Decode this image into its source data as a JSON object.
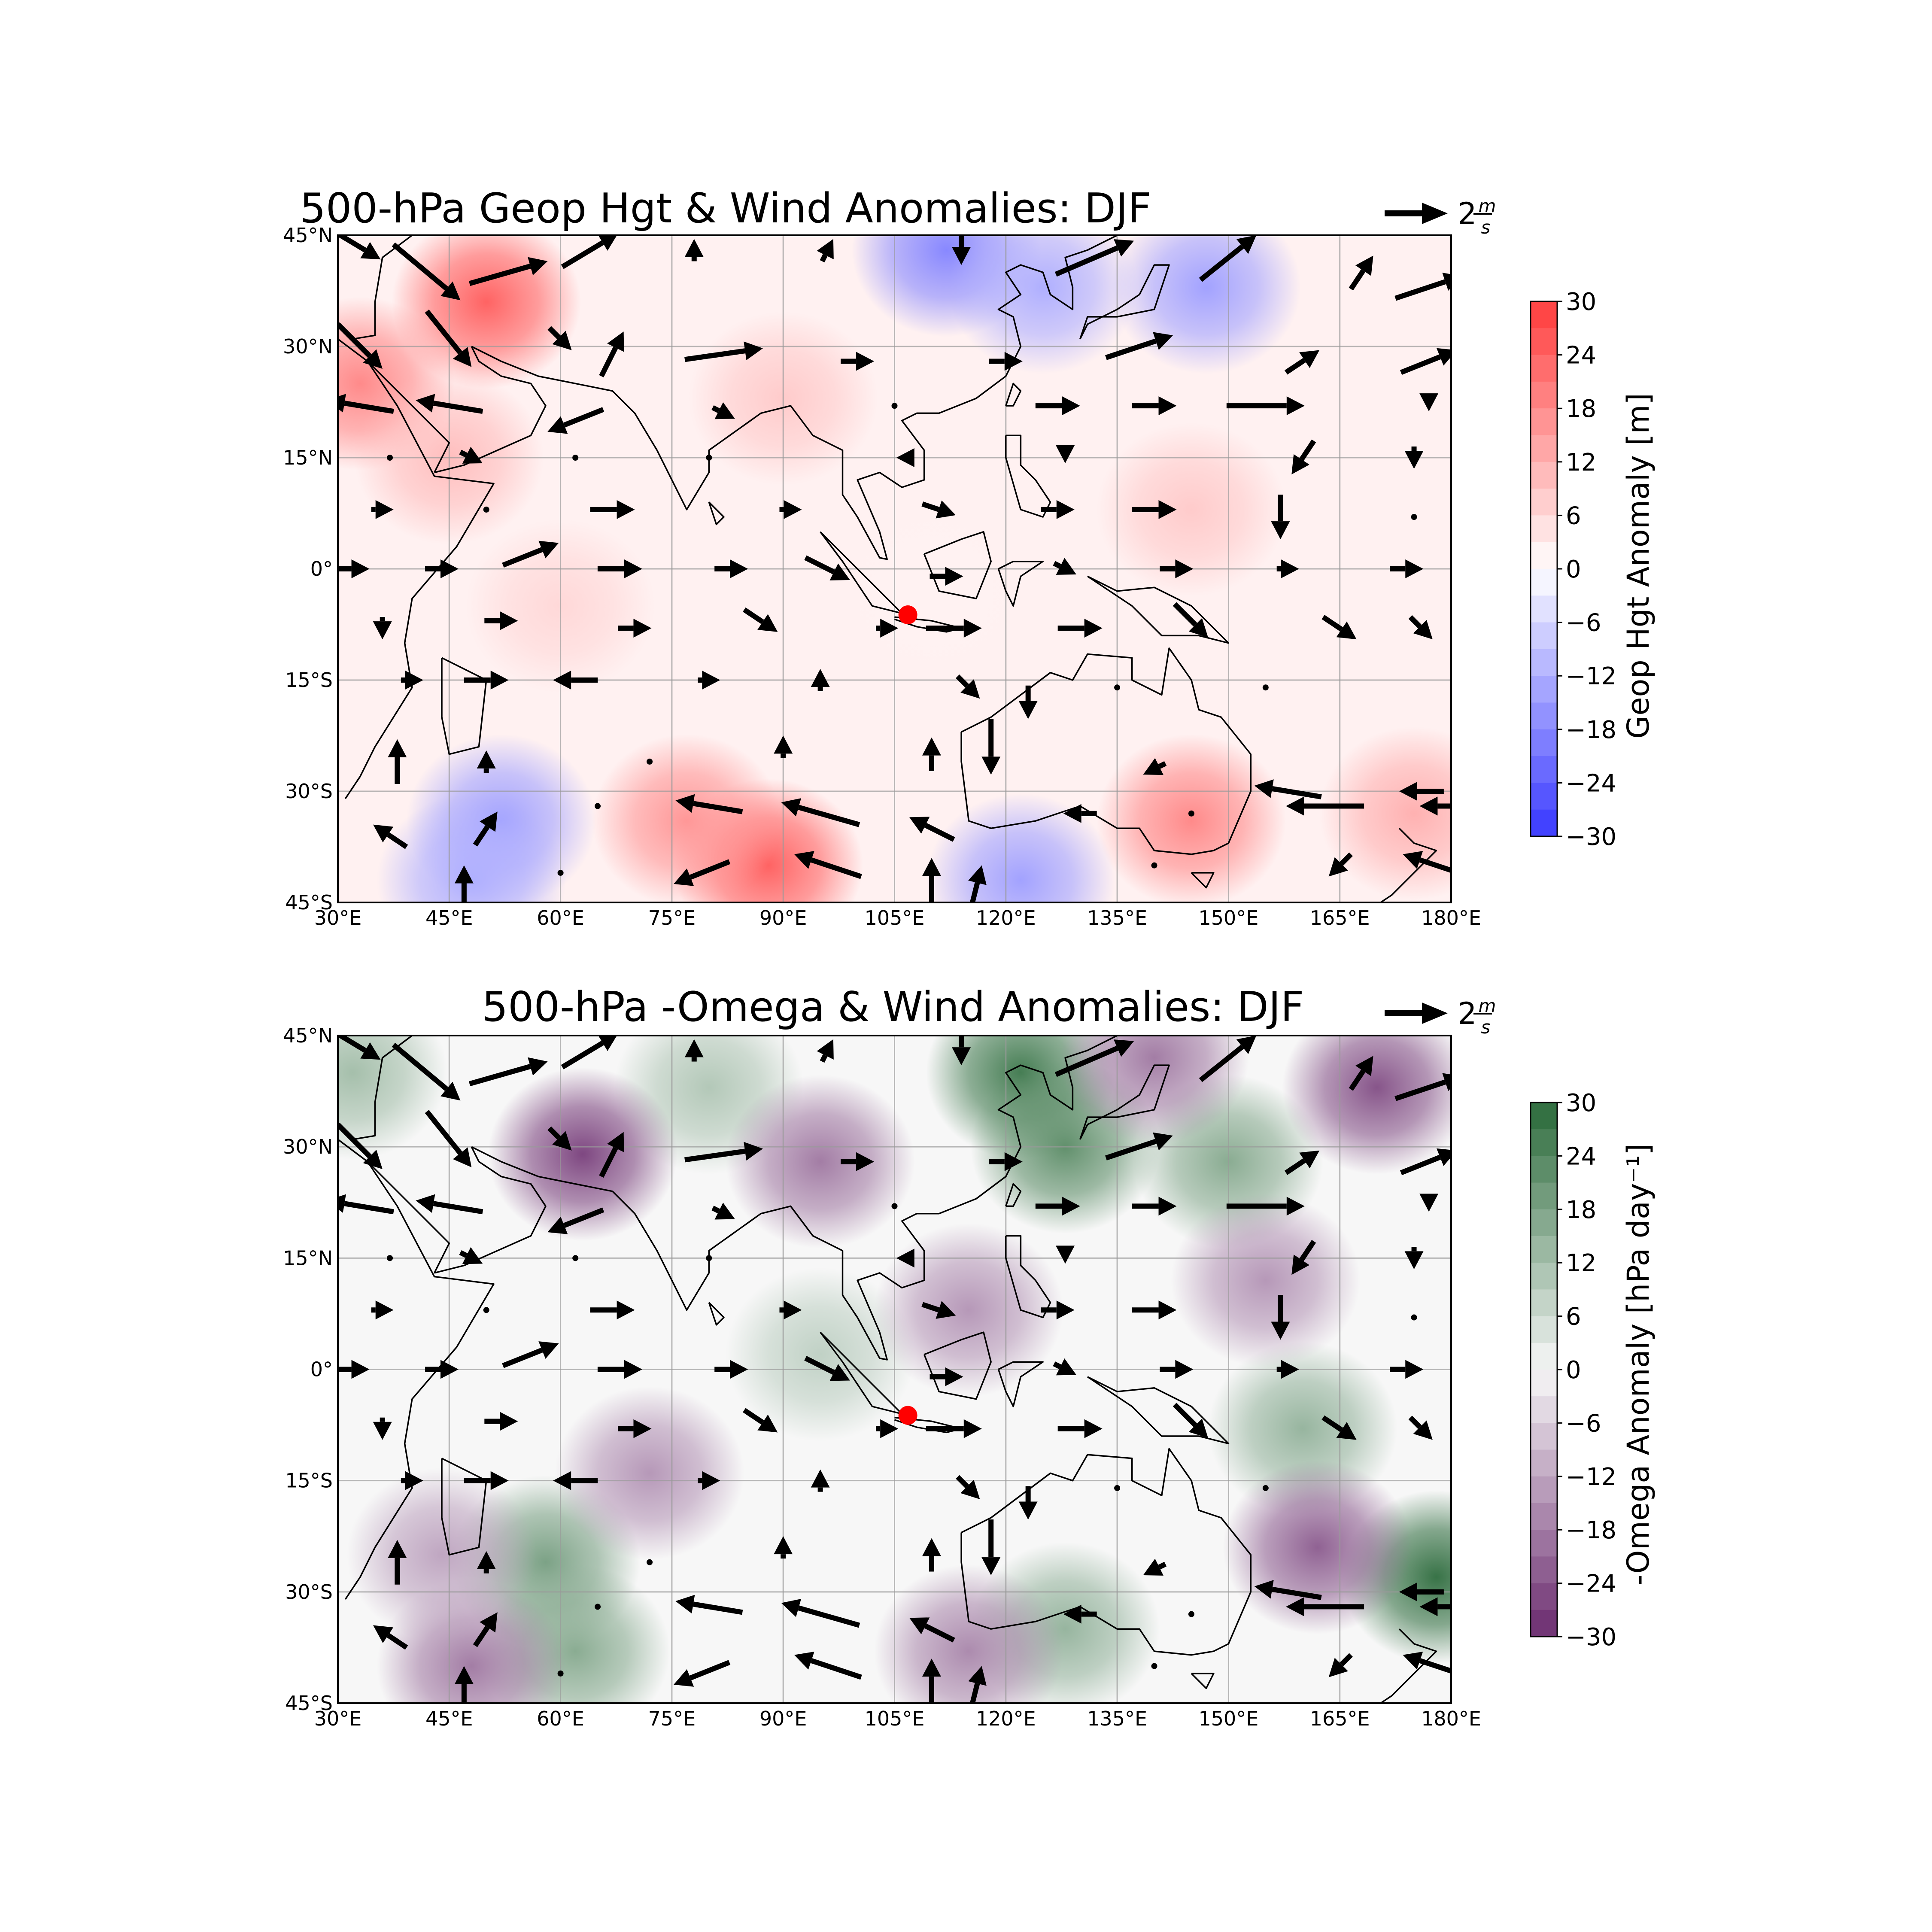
{
  "panels": [
    {
      "id": "geop",
      "title": "500-hPa Geop Hgt & Wind Anomalies: DJF",
      "colorbar_label": "Geop Hgt Anomaly [m]",
      "colormap": [
        "#3838ff",
        "#ffffff",
        "#ff3c3c"
      ],
      "background": "#fff1f1",
      "blobs": [
        {
          "lon": 50,
          "lat": 36,
          "v": 24
        },
        {
          "lon": 33,
          "lat": 25,
          "v": 18
        },
        {
          "lon": 45,
          "lat": 15,
          "v": 10
        },
        {
          "lon": 88,
          "lat": -40,
          "v": 24
        },
        {
          "lon": 77,
          "lat": -34,
          "v": 16
        },
        {
          "lon": 145,
          "lat": -34,
          "v": 18
        },
        {
          "lon": 175,
          "lat": -33,
          "v": 12
        },
        {
          "lon": 145,
          "lat": 8,
          "v": 8
        },
        {
          "lon": 90,
          "lat": 23,
          "v": 8
        },
        {
          "lon": 112,
          "lat": 43,
          "v": -18
        },
        {
          "lon": 125,
          "lat": 38,
          "v": -12
        },
        {
          "lon": 147,
          "lat": 38,
          "v": -14
        },
        {
          "lon": 52,
          "lat": -34,
          "v": -14
        },
        {
          "lon": 48,
          "lat": -42,
          "v": -12
        },
        {
          "lon": 122,
          "lat": -42,
          "v": -14
        },
        {
          "lon": 110,
          "lat": -3,
          "v": 2
        },
        {
          "lon": 60,
          "lat": -5,
          "v": 6
        }
      ]
    },
    {
      "id": "omega",
      "title": "500-hPa -Omega & Wind Anomalies: DJF",
      "colorbar_label": "-Omega Anomaly [hPa day⁻¹]",
      "colormap": [
        "#6b2c6f",
        "#f7f7f7",
        "#2a6a3a"
      ],
      "background": "#f7f7f7",
      "blobs": [
        {
          "lon": 122,
          "lat": 40,
          "v": 26
        },
        {
          "lon": 128,
          "lat": 30,
          "v": 22
        },
        {
          "lon": 150,
          "lat": 28,
          "v": 16
        },
        {
          "lon": 178,
          "lat": -28,
          "v": 28
        },
        {
          "lon": 160,
          "lat": -8,
          "v": 14
        },
        {
          "lon": 58,
          "lat": -26,
          "v": 18
        },
        {
          "lon": 62,
          "lat": -38,
          "v": 16
        },
        {
          "lon": 128,
          "lat": -35,
          "v": 14
        },
        {
          "lon": 32,
          "lat": 40,
          "v": 12
        },
        {
          "lon": 80,
          "lat": 38,
          "v": 10
        },
        {
          "lon": 95,
          "lat": 2,
          "v": 8
        },
        {
          "lon": 63,
          "lat": 29,
          "v": -26
        },
        {
          "lon": 170,
          "lat": 38,
          "v": -24
        },
        {
          "lon": 140,
          "lat": 42,
          "v": -18
        },
        {
          "lon": 95,
          "lat": 28,
          "v": -18
        },
        {
          "lon": 162,
          "lat": -24,
          "v": -22
        },
        {
          "lon": 48,
          "lat": -40,
          "v": -18
        },
        {
          "lon": 115,
          "lat": 8,
          "v": -14
        },
        {
          "lon": 155,
          "lat": 12,
          "v": -14
        },
        {
          "lon": 72,
          "lat": -14,
          "v": -14
        },
        {
          "lon": 115,
          "lat": -38,
          "v": -16
        },
        {
          "lon": 44,
          "lat": -25,
          "v": -12
        }
      ]
    }
  ],
  "axes": {
    "x_ticks": [
      "30°E",
      "45°E",
      "60°E",
      "75°E",
      "90°E",
      "105°E",
      "120°E",
      "135°E",
      "150°E",
      "165°E",
      "180°E"
    ],
    "x_values": [
      30,
      45,
      60,
      75,
      90,
      105,
      120,
      135,
      150,
      165,
      180
    ],
    "y_ticks": [
      "45°N",
      "30°N",
      "15°N",
      "0°",
      "15°S",
      "30°S",
      "45°S"
    ],
    "y_values": [
      45,
      30,
      15,
      0,
      -15,
      -30,
      -45
    ],
    "lon_range": [
      30,
      180
    ],
    "lat_range": [
      -45,
      45
    ],
    "grid": true
  },
  "colorbar_ticks": [
    "30",
    "24",
    "18",
    "12",
    "6",
    "0",
    "−6",
    "−12",
    "−18",
    "−24",
    "−30"
  ],
  "colorbar_values": [
    30,
    24,
    18,
    12,
    6,
    0,
    -6,
    -12,
    -18,
    -24,
    -30
  ],
  "wind_key": {
    "label": "2",
    "units": "m/s",
    "value": 2
  },
  "marker": {
    "lon": 106.8,
    "lat": -6.2,
    "color": "#ff0000"
  },
  "wind_field": [
    [
      32,
      44,
      5,
      -3
    ],
    [
      42,
      40,
      6,
      -5
    ],
    [
      53,
      40,
      7,
      2
    ],
    [
      64,
      43,
      5,
      3
    ],
    [
      78,
      43,
      0,
      2
    ],
    [
      96,
      43,
      1,
      2
    ],
    [
      114,
      44,
      0,
      -4
    ],
    [
      132,
      42,
      7,
      3
    ],
    [
      150,
      42,
      5,
      4
    ],
    [
      168,
      40,
      2,
      3
    ],
    [
      177,
      38,
      6,
      2
    ],
    [
      33,
      30,
      4,
      -4
    ],
    [
      45,
      31,
      4,
      -5
    ],
    [
      60,
      31,
      2,
      -2
    ],
    [
      67,
      29,
      2,
      4
    ],
    [
      82,
      29,
      7,
      1
    ],
    [
      100,
      28,
      3,
      0
    ],
    [
      120,
      28,
      3,
      0
    ],
    [
      138,
      30,
      6,
      2
    ],
    [
      160,
      28,
      3,
      2
    ],
    [
      177,
      28,
      5,
      2
    ],
    [
      33,
      22,
      -6,
      1
    ],
    [
      45,
      22,
      -6,
      1
    ],
    [
      62,
      20,
      -5,
      -2
    ],
    [
      82,
      21,
      2,
      -1
    ],
    [
      105,
      22,
      0,
      0
    ],
    [
      127,
      22,
      4,
      0
    ],
    [
      140,
      22,
      4,
      0
    ],
    [
      155,
      22,
      7,
      0
    ],
    [
      177,
      22,
      0,
      -1
    ],
    [
      37,
      15,
      0,
      0
    ],
    [
      48,
      15,
      2,
      -1
    ],
    [
      62,
      15,
      0,
      0
    ],
    [
      80,
      15,
      0,
      0
    ],
    [
      106,
      15,
      -1,
      0
    ],
    [
      128,
      15,
      0,
      -1
    ],
    [
      160,
      15,
      -2,
      -3
    ],
    [
      175,
      15,
      0,
      -2
    ],
    [
      36,
      8,
      2,
      0
    ],
    [
      50,
      8,
      0,
      0
    ],
    [
      67,
      8,
      4,
      0
    ],
    [
      91,
      8,
      2,
      0
    ],
    [
      111,
      8,
      3,
      -1
    ],
    [
      127,
      8,
      3,
      0
    ],
    [
      140,
      8,
      4,
      0
    ],
    [
      157,
      7,
      0,
      -4
    ],
    [
      175,
      7,
      0,
      0
    ],
    [
      32,
      0,
      3,
      0
    ],
    [
      44,
      0,
      3,
      0
    ],
    [
      56,
      2,
      5,
      2
    ],
    [
      68,
      0,
      4,
      0
    ],
    [
      83,
      0,
      3,
      0
    ],
    [
      96,
      0,
      4,
      -2
    ],
    [
      112,
      -1,
      3,
      0
    ],
    [
      128,
      0,
      2,
      -1
    ],
    [
      143,
      0,
      3,
      0
    ],
    [
      158,
      0,
      2,
      0
    ],
    [
      174,
      0,
      3,
      0
    ],
    [
      36,
      -8,
      0,
      -2
    ],
    [
      52,
      -7,
      3,
      0
    ],
    [
      70,
      -8,
      3,
      0
    ],
    [
      87,
      -7,
      3,
      -2
    ],
    [
      104,
      -8,
      2,
      0
    ],
    [
      113,
      -8,
      5,
      0
    ],
    [
      130,
      -8,
      4,
      0
    ],
    [
      145,
      -7,
      3,
      -3
    ],
    [
      165,
      -8,
      3,
      -2
    ],
    [
      176,
      -8,
      2,
      -2
    ],
    [
      40,
      -15,
      2,
      0
    ],
    [
      50,
      -15,
      4,
      0
    ],
    [
      62,
      -15,
      -4,
      0
    ],
    [
      80,
      -15,
      2,
      0
    ],
    [
      95,
      -15,
      0,
      2
    ],
    [
      115,
      -16,
      2,
      -2
    ],
    [
      123,
      -18,
      0,
      -3
    ],
    [
      135,
      -16,
      0,
      0
    ],
    [
      155,
      -16,
      0,
      0
    ],
    [
      38,
      -26,
      0,
      4
    ],
    [
      50,
      -26,
      0,
      2
    ],
    [
      72,
      -26,
      0,
      0
    ],
    [
      90,
      -24,
      0,
      2
    ],
    [
      110,
      -25,
      0,
      3
    ],
    [
      118,
      -24,
      0,
      -5
    ],
    [
      140,
      -27,
      -2,
      -1
    ],
    [
      158,
      -30,
      -6,
      1
    ],
    [
      176,
      -30,
      -4,
      0
    ],
    [
      37,
      -36,
      -3,
      2
    ],
    [
      50,
      -35,
      2,
      3
    ],
    [
      65,
      -32,
      0,
      0
    ],
    [
      80,
      -32,
      -6,
      1
    ],
    [
      95,
      -33,
      -7,
      2
    ],
    [
      110,
      -35,
      -4,
      2
    ],
    [
      130,
      -33,
      -3,
      0
    ],
    [
      145,
      -33,
      0,
      0
    ],
    [
      163,
      -32,
      -7,
      0
    ],
    [
      178,
      -32,
      -3,
      0
    ],
    [
      47,
      -43,
      0,
      4
    ],
    [
      60,
      -41,
      0,
      0
    ],
    [
      79,
      -41,
      -5,
      -2
    ],
    [
      96,
      -40,
      -6,
      2
    ],
    [
      110,
      -42,
      0,
      4
    ],
    [
      116,
      -43,
      1,
      4
    ],
    [
      140,
      -40,
      0,
      0
    ],
    [
      165,
      -40,
      -2,
      -2
    ],
    [
      178,
      -40,
      -6,
      2
    ]
  ]
}
